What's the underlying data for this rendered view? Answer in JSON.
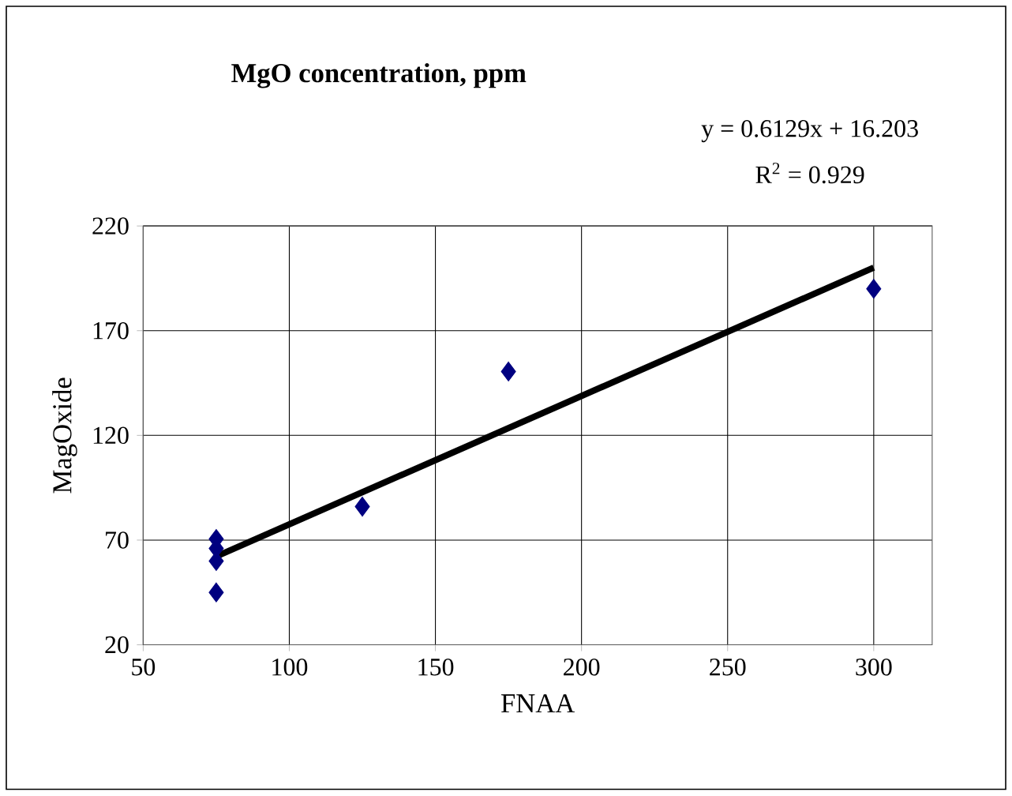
{
  "chart_data": {
    "type": "scatter",
    "title": "MgO concentration, ppm",
    "xlabel": "FNAA",
    "ylabel": "MagOxide",
    "annotations": [
      "y = 0.6129x + 16.203",
      "R$^{2}$ = 0.929"
    ],
    "xlim": [
      50,
      320
    ],
    "xticks": [
      50,
      100,
      150,
      200,
      250,
      300
    ],
    "ylim": [
      20,
      220
    ],
    "yticks": [
      20,
      70,
      120,
      170,
      220
    ],
    "grid": true,
    "marker": "diamond",
    "series": [
      {
        "color": "#000080",
        "x": [
          75,
          75,
          75,
          75,
          125,
          175,
          300
        ],
        "values": [
          70.5,
          66,
          60,
          45,
          86,
          150.5,
          190
        ]
      },
      {
        "type": "line",
        "color": "#000000",
        "line_style": "solid",
        "marker": "none",
        "x": [
          75,
          300
        ],
        "values": [
          62.2,
          200.1
        ]
      }
    ]
  }
}
